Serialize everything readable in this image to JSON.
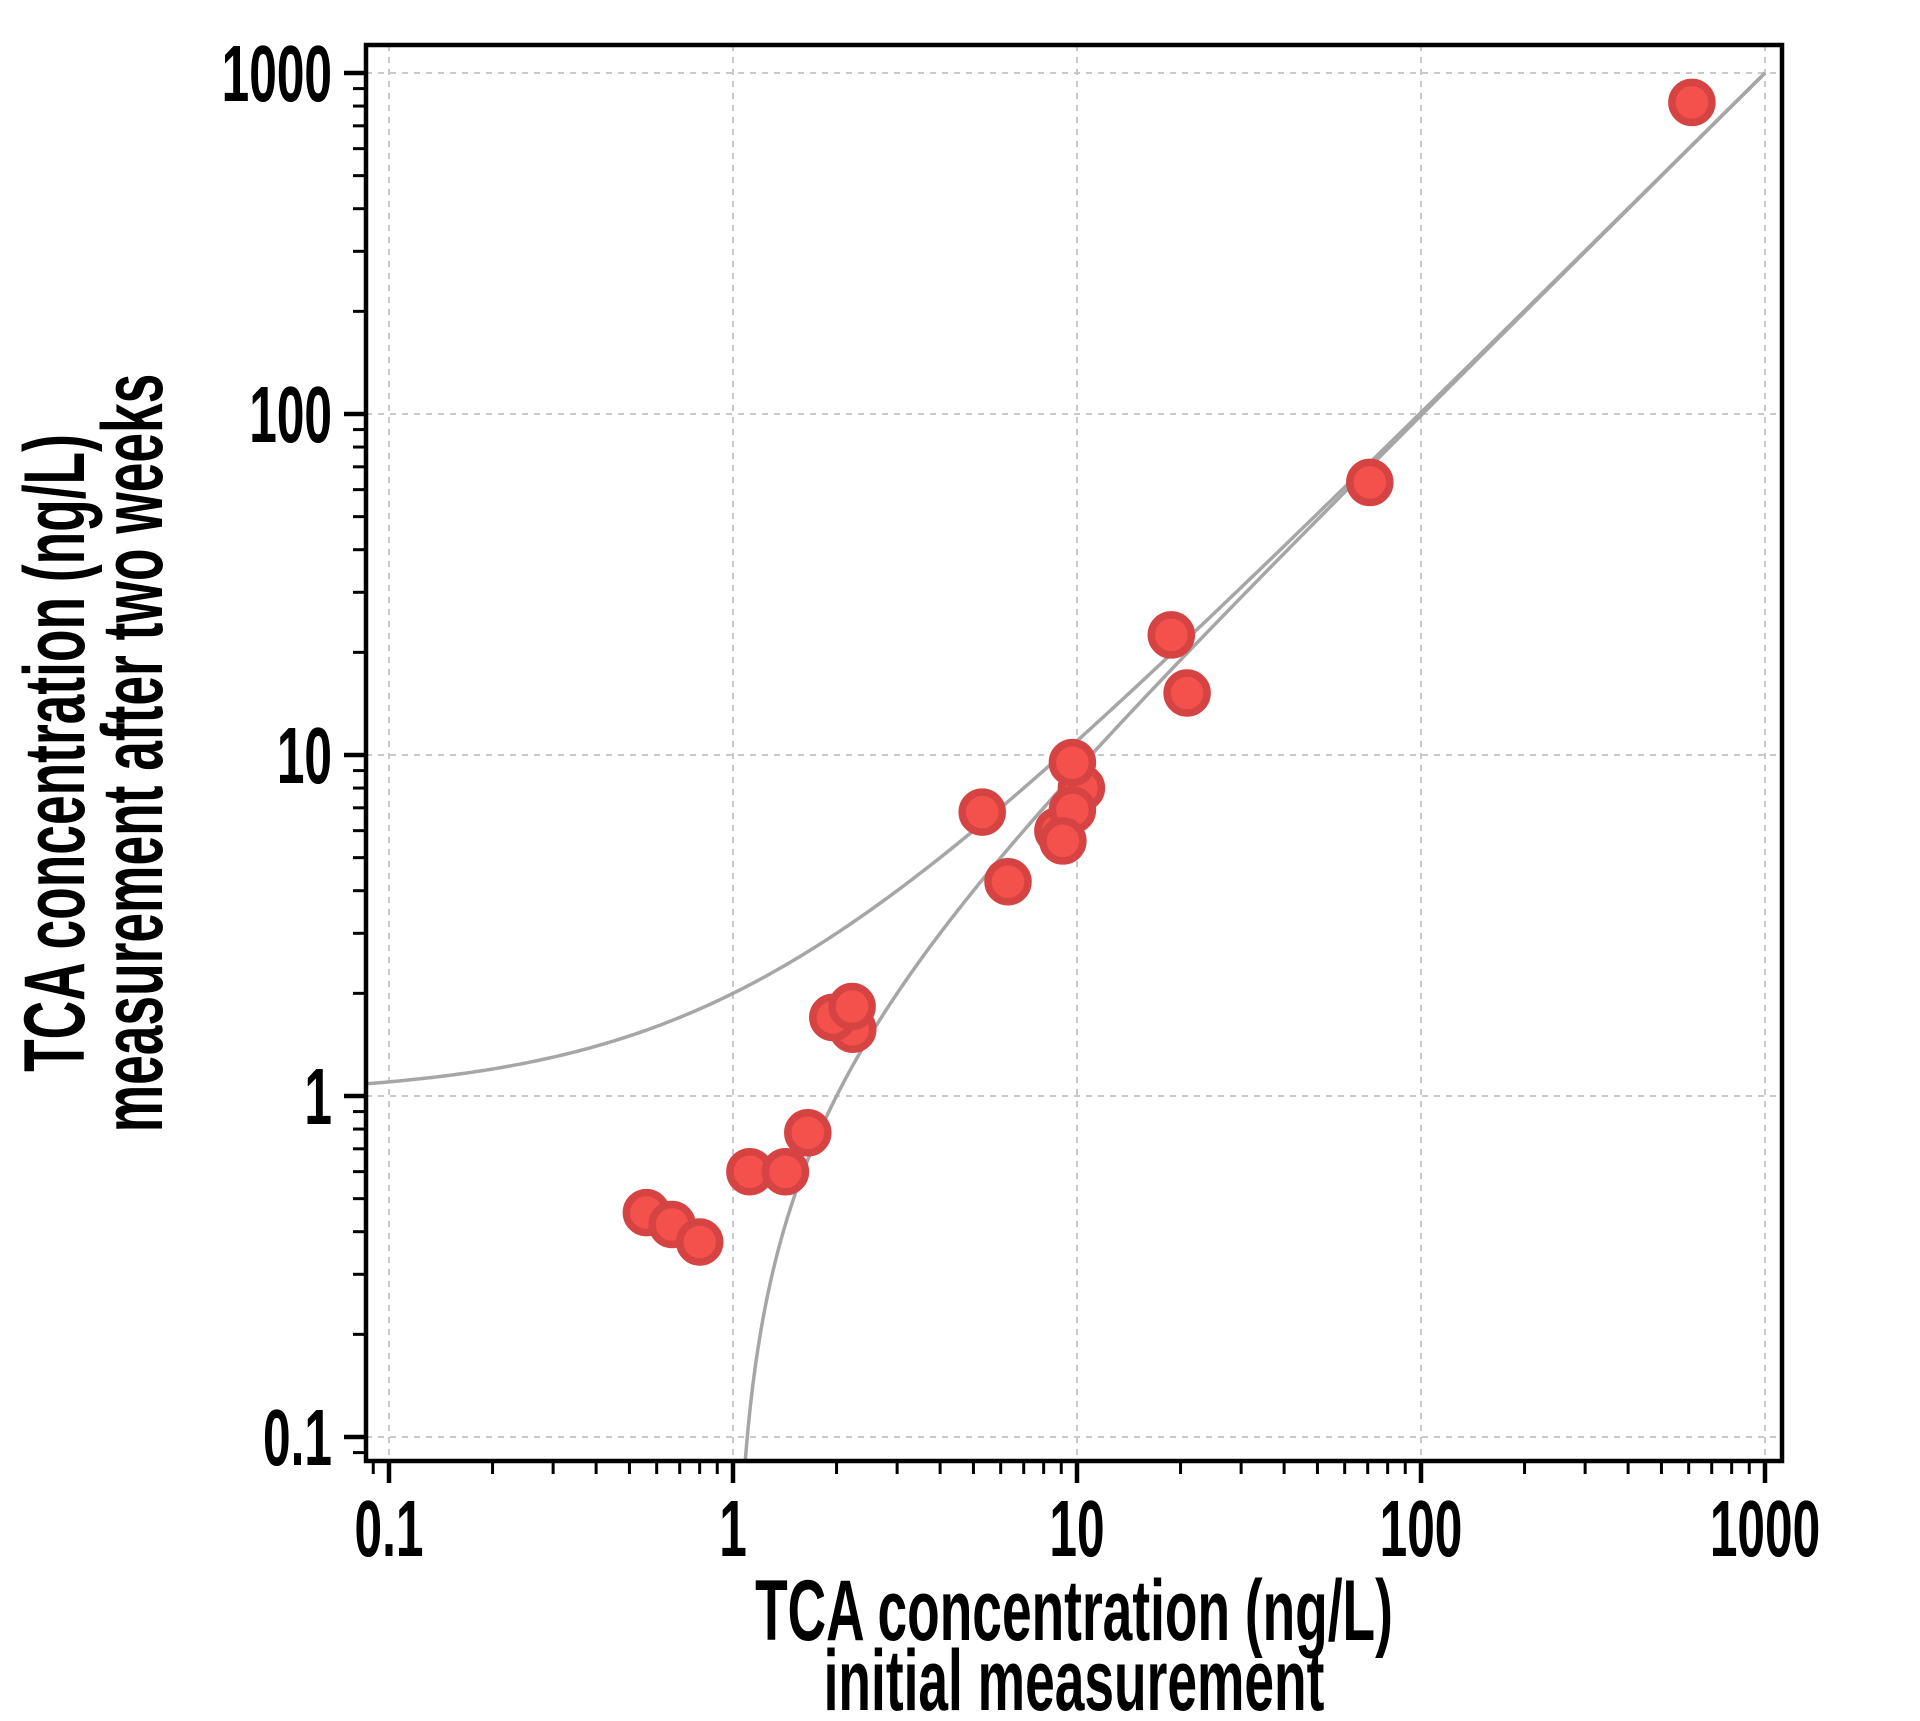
{
  "figure": {
    "background": "#ffffff"
  },
  "chart_data": {
    "type": "scatter",
    "title": "",
    "xlabel_lines": [
      "TCA concentration (ng/L)",
      "initial measurement"
    ],
    "ylabel_lines": [
      "TCA concentration (ng/L)",
      "measurement after two weeks"
    ],
    "x_scale": "log",
    "y_scale": "log",
    "xlim": [
      0.086,
      1120
    ],
    "ylim": [
      0.085,
      1210
    ],
    "x_ticks": [
      {
        "value": 0.1,
        "label": "0.1"
      },
      {
        "value": 1,
        "label": "1"
      },
      {
        "value": 10,
        "label": "10"
      },
      {
        "value": 100,
        "label": "100"
      },
      {
        "value": 1000,
        "label": "1000"
      }
    ],
    "y_ticks": [
      {
        "value": 0.1,
        "label": "0.1"
      },
      {
        "value": 1,
        "label": "1"
      },
      {
        "value": 10,
        "label": "10"
      },
      {
        "value": 100,
        "label": "100"
      },
      {
        "value": 1000,
        "label": "1000"
      }
    ],
    "minor_tick_mantissas": [
      2,
      3,
      4,
      5,
      6,
      7,
      8,
      9
    ],
    "grid": {
      "show": true,
      "style": "dashed",
      "at": "decade-lines",
      "legend": "none"
    },
    "points": [
      {
        "x": 0.56,
        "y": 0.455
      },
      {
        "x": 0.665,
        "y": 0.42
      },
      {
        "x": 0.8,
        "y": 0.373
      },
      {
        "x": 1.12,
        "y": 0.6
      },
      {
        "x": 1.42,
        "y": 0.6
      },
      {
        "x": 1.65,
        "y": 0.78
      },
      {
        "x": 2.23,
        "y": 1.57
      },
      {
        "x": 1.95,
        "y": 1.7
      },
      {
        "x": 2.22,
        "y": 1.83
      },
      {
        "x": 5.3,
        "y": 6.8
      },
      {
        "x": 6.3,
        "y": 4.25
      },
      {
        "x": 10.3,
        "y": 8.0
      },
      {
        "x": 8.8,
        "y": 6.0
      },
      {
        "x": 9.7,
        "y": 9.5
      },
      {
        "x": 9.7,
        "y": 6.9
      },
      {
        "x": 9.1,
        "y": 5.6
      },
      {
        "x": 18.8,
        "y": 22.5
      },
      {
        "x": 20.9,
        "y": 15.2
      },
      {
        "x": 71,
        "y": 63
      },
      {
        "x": 613,
        "y": 820
      }
    ],
    "curves": [
      {
        "name": "upper-prediction-bound",
        "equation": "y = x + 1",
        "offset": 1,
        "x_end": 1000
      },
      {
        "name": "lower-prediction-bound",
        "equation": "y = x - 1",
        "offset": -1,
        "x_end": 1000
      }
    ],
    "colors": {
      "point_fill": "#f4514c",
      "point_edge": "#d64343",
      "curve": "#a6a6a6",
      "grid": "#c9c9c9",
      "frame": "#000000",
      "text": "#000000"
    }
  }
}
